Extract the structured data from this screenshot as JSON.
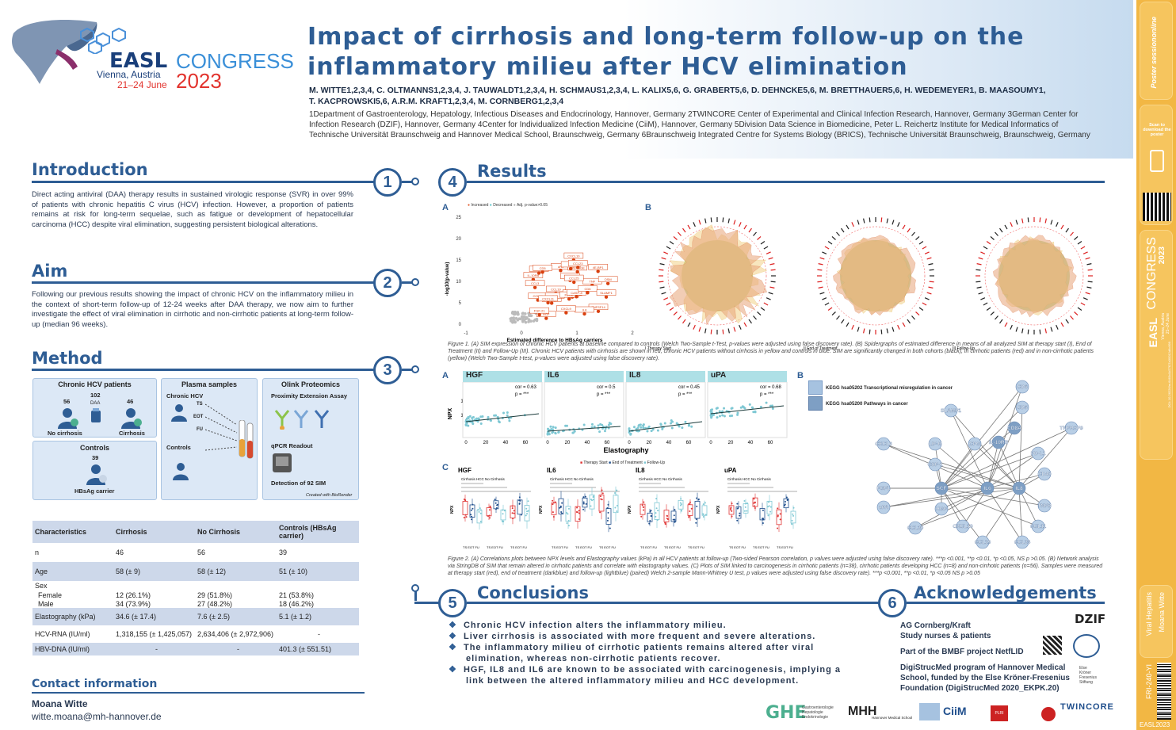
{
  "header": {
    "title_line1": "Impact of cirrhosis and long-term follow-up on the",
    "title_line2": "inflammatory milieu after HCV elimination",
    "authors_line1": "M. WITTE1,2,3,4, C. OLTMANNS1,2,3,4, J. TAUWALDT1,2,3,4, H. SCHMAUS1,2,3,4, L. KALIX5,6, G. GRABERT5,6, D. DEHNCKE5,6, M. BRETTHAUER5,6, H. WEDEMEYER1, B. MAASOUMY1,",
    "authors_line2": "T. KACPROWSKI5,6, A.R.M. KRAFT1,2,3,4, M. CORNBERG1,2,3,4",
    "affiliations": "1Department of Gastroenterology, Hepatology, Infectious Diseases and Endocrinology, Hannover, Germany 2TWINCORE Center of Experimental and Clinical Infection Research, Hannover, Germany 3German Center for Infection Research (DZIF), Hannover, Germany 4Center for Individualized Infection Medicine (CiiM), Hannover, Germany 5Division Data Science in Biomedicine, Peter L. Reichertz Institute for Medical Informatics of Technische Universität Braunschweig and Hannover Medical School, Braunschweig, Germany 6Braunschweig Integrated Centre for Systems Biology (BRICS), Technische Universität Braunschweig, Braunschweig, Germany"
  },
  "logo": {
    "easl": "EASL",
    "congress": "CONGRESS",
    "city": "Vienna, Austria",
    "dates": "21–24 June",
    "year": "2023"
  },
  "intro": {
    "title": "Introduction",
    "num": "1",
    "text": "Direct acting antiviral (DAA) therapy results in sustained virologic response (SVR) in over 99% of patients with chronic hepatitis C virus (HCV) infection. However, a proportion of patients remains at risk for long-term sequelae, such as fatigue or development of hepatocellular carcinoma (HCC) despite viral elimination, suggesting persistent biological alterations."
  },
  "aim": {
    "title": "Aim",
    "num": "2",
    "text": "Following our previous results showing the impact of chronic HCV on the inflammatory milieu in the context of short-term follow-up of 12-24 weeks after DAA therapy, we now aim to further investigate the effect of viral elimination in cirrhotic and non-cirrhotic patients at long-term follow-up (median 96 weeks)."
  },
  "method": {
    "title": "Method",
    "num": "3",
    "box1": {
      "title": "Chronic HCV patients",
      "total": "102",
      "daa": "DAA",
      "left_n": "56",
      "right_n": "46",
      "left": "No cirrhosis",
      "right": "Cirrhosis"
    },
    "box2": {
      "title": "Controls",
      "n": "39",
      "label": "HBsAg carrier"
    },
    "box3": {
      "title": "Plasma samples",
      "chronic": "Chronic HCV",
      "ts": "TS",
      "eot": "EOT",
      "fu": "FU",
      "controls": "Controls"
    },
    "box4": {
      "title": "Olink Proteomics",
      "sub": "Proximity Extension Assay",
      "qpcr": "qPCR Readout",
      "detect": "Detection of 92 SIM",
      "credit": "Created with BioRender"
    }
  },
  "table": {
    "headers": [
      "Characteristics",
      "Cirrhosis",
      "No Cirrhosis",
      "Controls (HBsAg carrier)"
    ],
    "rows": [
      [
        "n",
        "46",
        "56",
        "39"
      ],
      [
        "Age",
        "58 (± 9)",
        "58 (± 12)",
        "51 (± 10)"
      ],
      [
        "Sex",
        "",
        "",
        ""
      ],
      [
        "Female",
        "12 (26.1%)",
        "29 (51.8%)",
        "21 (53.8%)"
      ],
      [
        "Male",
        "34 (73.9%)",
        "27 (48.2%)",
        "18 (46.2%)"
      ],
      [
        "Elastography (kPa)",
        "34.6 (± 17.4)",
        "7.6 (± 2.5)",
        "5.1 (± 1.2)"
      ],
      [
        "HCV-RNA (IU/ml)",
        "1,318,155 (± 1,425,057)",
        "2,634,406 (± 2,972,906)",
        "-"
      ],
      [
        "HBV-DNA (IU/ml)",
        "-",
        "-",
        "401.3 (± 551.51)"
      ]
    ]
  },
  "contact": {
    "title": "Contact information",
    "name": "Moana Witte",
    "email": "witte.moana@mh-hannover.de"
  },
  "results": {
    "title": "Results",
    "num": "4",
    "fig1": {
      "labelA": "A",
      "labelB": "B",
      "legend": [
        "Increased",
        "Decreased",
        "Adj. p-value>0.05"
      ],
      "ylabel": "-log10(p-value)",
      "xlabel": "Estimated difference to HBsAg carriers",
      "yticks": [
        "0",
        "5",
        "10",
        "15",
        "20",
        "25"
      ],
      "xticks": [
        "-1",
        "0",
        "1",
        "2"
      ],
      "proteins": [
        "CXCL10",
        "CCL19",
        "CCL20",
        "IL-18R1",
        "TNFSF14",
        "HGF",
        "IL8",
        "CXCL9",
        "MCP-1",
        "IL-10RB",
        "CDCP1",
        "uPA",
        "TNF",
        "IL-6",
        "CD40",
        "FGF-21",
        "CXCL11",
        "CCL3",
        "FLT3L",
        "EN-RAGE",
        "CASP-8",
        "CD5",
        "CD6",
        "OSM",
        "IL6",
        "SLAMF1",
        "CCL25",
        "4E-BP1",
        "CCL23"
      ],
      "spider": [
        "I Therapy Start",
        "II End of Treatment",
        "III Follow-Up"
      ],
      "caption": "Figure 1. (A) SIM expression of chronic HCV patients at baseline compared to controls (Welch Two-Sample t-Test, p-values were adjusted using false discovery rate). (B) Spidergraphs of estimated difference in means of all analyzed SIM at therapy start (I), End of Treatment (II) and Follow-Up (III). Chronic HCV patients with cirrhosis are shown in red, chronic HCV patients without cirrhosis in yellow and controls in blue. SIM are significantly changed in both cohorts (black), in cirrhotic patients (red) and in non-cirrhotic patients (yellow) (Welch Two-Sample t-test, p-values were adjusted using false discovery rate)."
    },
    "fig2": {
      "labelA": "A",
      "labelB": "B",
      "labelC": "C",
      "ylabel": "NPX",
      "xlabel": "Elastography",
      "xticks": [
        "0",
        "20",
        "40",
        "60"
      ],
      "yticks": [
        "5",
        "10",
        "15"
      ],
      "panels": [
        {
          "name": "HGF",
          "cor": "cor = 0.63",
          "p": "p = ***"
        },
        {
          "name": "IL6",
          "cor": "cor = 0.5",
          "p": "p = ***"
        },
        {
          "name": "IL8",
          "cor": "cor = 0.45",
          "p": "p = ***"
        },
        {
          "name": "uPA",
          "cor": "cor = 0.68",
          "p": "p = ***"
        }
      ],
      "kegg": [
        "KEGG hsa05202 Transcriptional misregulation in cancer",
        "KEGG hsa05200 Pathways in cancer"
      ],
      "network": [
        "CD6",
        "CD5",
        "SLAMF1",
        "CD8A",
        "TNFRSF9",
        "CXCL6",
        "LIF-R",
        "CPG",
        "IL-10RB",
        "PD-L1",
        "CSF-1",
        "CD40",
        "FGFL",
        "SCF",
        "IL6",
        "IL8",
        "TNFB",
        "uPA",
        "HGF",
        "CCL11",
        "CCL20",
        "CXCL10",
        "CCL19",
        "CCL25"
      ],
      "legendC": [
        "Therapy Start",
        "End of Treatment",
        "Follow-Up"
      ],
      "boxpanels": [
        "HGF",
        "IL6",
        "IL8",
        "uPA"
      ],
      "groups": "Cirrhosis     HCC     No Cirrhosis",
      "xgroup": "TS EOT FU",
      "caption": "Figure 2. (A) Correlations plots between NPX levels and Elastography values (kPa) in all HCV patients at follow-up (Two-sided Pearson correlation, p values were adjusted using false discovery rate). ***p <0.001, **p <0.01, *p <0.05, NS p >0.05. (B) Network analysis via StringDB of SIM that remain altered in cirrhotic patients and correlate with elastography values. (C) Plots of SIM linked to carcinogenesis in cirrhotic patients (n=38), cirrhotic patients developing HCC (n=8) and non-cirrhotic patients (n=56). Samples were measured at therapy start (red), end of treatment (darkblue) and follow-up (lightblue) (paired) Welch 2-sample Mann-Whitney U test, p values were adjusted using false discovery rate). ***p <0.001, **p <0.01, *p <0.05 NS p >0.05"
    }
  },
  "conclusions": {
    "title": "Conclusions",
    "num": "5",
    "items": [
      "Chronic HCV infection alters the inflammatory milieu.",
      "Liver cirrhosis is associated with more frequent and severe alterations.",
      "The inflammatory milieu of cirrhotic patients remains altered after viral elimination, whereas non-cirrhotic patients recover.",
      "HGF, IL8 and IL6 are known to be associated with carcinogenesis, implying a link between the altered inflammatory milieu and HCC development."
    ]
  },
  "ack": {
    "title": "Acknowledgements",
    "num": "6",
    "l1": "AG Cornberg/Kraft",
    "l2": "Study nurses & patients",
    "l3": "Part of the BMBF project NetfLID",
    "l4": "DigiStrucMed program of Hannover Medical School, funded by the Else Kröner-Fresenius Foundation (DigiStrucMed 2020_EKPK.20)",
    "dzif": "DZIF",
    "ciim": "CiiM",
    "twincore": "TWINCORE",
    "mhh": "MHH",
    "mhh_sub": "Hannover Medical School",
    "ghe": "GHE",
    "ghe_sub": "Gastroenterologie Hepatologie Endokrinologie",
    "plri": "PLRI",
    "else": "Else Kröner Fresenius Stiftung"
  },
  "sidebar": {
    "postersession": "Poster sessiononline",
    "scan": "Scan to download the poster",
    "easl": "EASL",
    "congress": "CONGRESS",
    "year": "2023",
    "city": "Vienna, Austria",
    "dates": "21–24 June",
    "topic": "Viral Hepatitis",
    "author": "Moana Witte",
    "code": "FRI-240-YI",
    "footer": "EASL2023",
    "doi": "DOI: 10.26226/m.6463c0d77f27a30012d6c999"
  }
}
